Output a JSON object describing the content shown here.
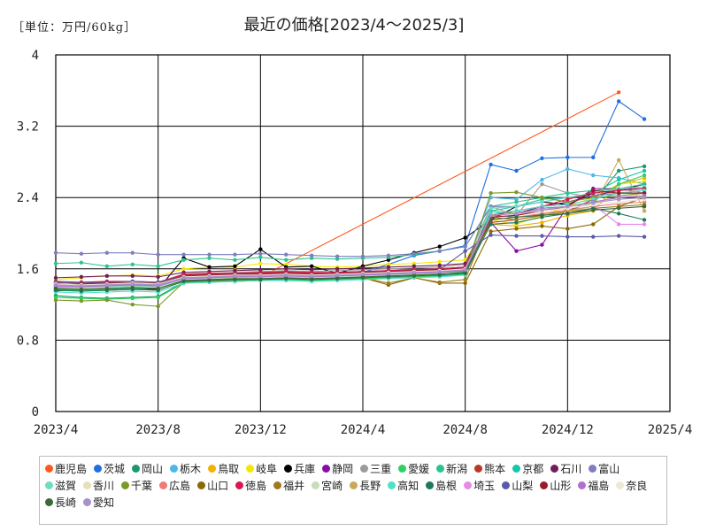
{
  "chart_data": {
    "type": "line",
    "title": "最近の価格[2023/4〜2025/3]",
    "unit_label": "［単位：万円/60kg］",
    "ylim": [
      0,
      4
    ],
    "y_ticks": [
      "0",
      "0.8",
      "1.6",
      "2.4",
      "3.2",
      "4"
    ],
    "x_ticks": [
      "2023/4",
      "2023/8",
      "2023/12",
      "2024/4",
      "2024/8",
      "2024/12",
      "2025/4"
    ],
    "x": [
      "2023/4",
      "2023/5",
      "2023/6",
      "2023/7",
      "2023/8",
      "2023/9",
      "2023/10",
      "2023/11",
      "2023/12",
      "2024/1",
      "2024/2",
      "2024/3",
      "2024/4",
      "2024/5",
      "2024/6",
      "2024/7",
      "2024/8",
      "2024/9",
      "2024/10",
      "2024/11",
      "2024/12",
      "2025/1",
      "2025/2",
      "2025/3"
    ],
    "legend_position": "bottom",
    "grid": true,
    "series": [
      {
        "name": "鹿児島",
        "color": "#ff5a1f",
        "values": [
          1.45,
          1.43,
          1.44,
          1.42,
          1.41,
          1.5,
          1.5,
          1.52,
          1.51,
          null,
          null,
          null,
          null,
          null,
          null,
          null,
          null,
          null,
          null,
          null,
          null,
          null,
          3.58,
          null
        ]
      },
      {
        "name": "茨城",
        "color": "#1f6fe0",
        "values": [
          1.38,
          1.4,
          1.42,
          1.41,
          1.4,
          1.46,
          1.47,
          1.48,
          1.49,
          1.5,
          1.51,
          1.54,
          1.56,
          1.65,
          1.75,
          1.8,
          1.86,
          2.77,
          2.7,
          2.84,
          2.85,
          2.85,
          3.48,
          3.28
        ]
      },
      {
        "name": "岡山",
        "color": "#1a9a6c",
        "values": [
          1.3,
          1.28,
          1.27,
          1.28,
          1.29,
          1.45,
          1.46,
          1.46,
          1.47,
          1.48,
          1.47,
          1.48,
          1.49,
          1.5,
          1.51,
          1.52,
          1.53,
          2.2,
          2.18,
          2.21,
          2.25,
          2.35,
          2.7,
          2.75
        ]
      },
      {
        "name": "栃木",
        "color": "#4ab8e8",
        "values": [
          1.4,
          1.39,
          1.41,
          1.4,
          1.39,
          1.48,
          1.49,
          1.5,
          1.52,
          1.53,
          1.52,
          1.54,
          1.55,
          1.56,
          1.57,
          1.58,
          1.6,
          2.4,
          2.38,
          2.6,
          2.72,
          2.65,
          2.62,
          2.55
        ]
      },
      {
        "name": "鳥取",
        "color": "#f2b000",
        "values": [
          1.42,
          1.4,
          1.4,
          1.41,
          1.42,
          1.52,
          1.53,
          1.55,
          1.56,
          1.55,
          1.54,
          1.55,
          1.56,
          1.57,
          1.58,
          1.59,
          1.6,
          2.1,
          2.08,
          2.12,
          2.2,
          2.25,
          2.55,
          2.62
        ]
      },
      {
        "name": "岐阜",
        "color": "#f5e800",
        "values": [
          1.48,
          1.5,
          1.52,
          1.53,
          1.52,
          1.6,
          1.62,
          1.62,
          1.66,
          1.65,
          1.63,
          1.62,
          1.63,
          1.65,
          1.66,
          1.68,
          1.7,
          2.15,
          2.1,
          2.2,
          2.3,
          2.4,
          2.55,
          2.58
        ]
      },
      {
        "name": "兵庫",
        "color": "#000000",
        "values": [
          1.35,
          1.38,
          1.37,
          1.38,
          1.37,
          1.72,
          1.62,
          1.63,
          1.82,
          1.62,
          1.63,
          1.55,
          1.63,
          1.7,
          1.78,
          1.85,
          1.95,
          2.15,
          2.3,
          2.35,
          2.32,
          2.45,
          2.48,
          2.55
        ]
      },
      {
        "name": "静岡",
        "color": "#8a0ca8",
        "values": [
          1.4,
          1.41,
          1.42,
          1.43,
          1.42,
          1.52,
          1.53,
          1.54,
          1.55,
          1.56,
          1.55,
          1.56,
          1.57,
          1.58,
          1.59,
          1.6,
          1.62,
          2.12,
          1.8,
          1.87,
          2.3,
          2.5,
          2.5,
          2.5
        ]
      },
      {
        "name": "三重",
        "color": "#9b9b9b",
        "values": [
          1.42,
          1.43,
          1.44,
          1.45,
          1.44,
          1.54,
          1.55,
          1.56,
          1.57,
          1.58,
          1.57,
          1.58,
          1.59,
          1.6,
          1.61,
          1.62,
          1.65,
          2.3,
          2.2,
          2.55,
          2.45,
          2.4,
          2.5,
          2.45
        ]
      },
      {
        "name": "愛媛",
        "color": "#2fd162",
        "values": [
          1.28,
          1.27,
          1.26,
          1.27,
          1.28,
          1.44,
          1.45,
          1.46,
          1.47,
          1.48,
          1.47,
          1.48,
          1.49,
          1.5,
          1.51,
          1.52,
          1.54,
          2.25,
          2.22,
          2.28,
          2.3,
          2.35,
          2.55,
          2.65
        ]
      },
      {
        "name": "新潟",
        "color": "#2ac58c",
        "values": [
          1.66,
          1.67,
          1.63,
          1.65,
          1.63,
          1.7,
          1.72,
          1.7,
          1.73,
          1.7,
          1.72,
          1.71,
          1.72,
          1.73,
          1.76,
          1.8,
          1.85,
          2.3,
          2.35,
          2.4,
          2.45,
          2.48,
          2.5,
          2.55
        ]
      },
      {
        "name": "熊本",
        "color": "#b83a24",
        "values": [
          1.46,
          1.45,
          1.45,
          1.44,
          1.44,
          1.53,
          1.54,
          1.55,
          1.55,
          1.56,
          1.55,
          1.56,
          1.57,
          1.58,
          1.58,
          1.6,
          1.62,
          2.12,
          2.15,
          2.2,
          2.25,
          2.38,
          2.45,
          2.48
        ]
      },
      {
        "name": "京都",
        "color": "#17c6a6",
        "values": [
          1.37,
          1.36,
          1.37,
          1.38,
          1.38,
          1.47,
          1.48,
          1.49,
          1.5,
          1.5,
          1.5,
          1.51,
          1.52,
          1.53,
          1.54,
          1.55,
          1.57,
          2.25,
          2.3,
          2.38,
          2.4,
          2.45,
          2.6,
          2.7
        ]
      },
      {
        "name": "石川",
        "color": "#6f1f5a",
        "values": [
          1.5,
          1.51,
          1.52,
          1.52,
          1.51,
          1.56,
          1.57,
          1.58,
          1.59,
          1.6,
          1.59,
          1.6,
          1.61,
          1.62,
          1.63,
          1.64,
          1.66,
          2.2,
          2.22,
          2.3,
          2.35,
          2.42,
          2.48,
          2.5
        ]
      },
      {
        "name": "富山",
        "color": "#7f7fbf",
        "values": [
          1.78,
          1.77,
          1.78,
          1.78,
          1.76,
          1.76,
          1.76,
          1.76,
          1.77,
          1.76,
          1.75,
          1.74,
          1.74,
          1.75,
          1.77,
          1.8,
          1.85,
          2.3,
          2.3,
          2.35,
          2.4,
          2.42,
          2.45,
          2.45
        ]
      },
      {
        "name": "滋賀",
        "color": "#6fdcc0",
        "values": [
          1.4,
          1.39,
          1.4,
          1.41,
          1.4,
          1.49,
          1.5,
          1.51,
          1.52,
          1.52,
          1.52,
          1.53,
          1.54,
          1.55,
          1.56,
          1.57,
          1.59,
          2.28,
          2.3,
          2.35,
          2.4,
          2.45,
          2.5,
          2.52
        ]
      },
      {
        "name": "香川",
        "color": "#e6e0b8",
        "values": [
          1.43,
          1.42,
          1.43,
          1.44,
          1.43,
          1.51,
          1.52,
          1.53,
          1.54,
          1.54,
          1.53,
          1.54,
          1.55,
          1.56,
          1.57,
          1.58,
          1.6,
          2.18,
          2.2,
          2.25,
          2.28,
          2.33,
          2.4,
          2.45
        ]
      },
      {
        "name": "千葉",
        "color": "#7a9a28",
        "values": [
          1.25,
          1.24,
          1.25,
          1.2,
          1.18,
          1.45,
          1.46,
          1.47,
          1.48,
          1.49,
          1.48,
          1.49,
          1.5,
          1.52,
          1.54,
          1.56,
          1.58,
          2.45,
          2.46,
          2.4,
          2.35,
          2.4,
          2.42,
          2.45
        ]
      },
      {
        "name": "広島",
        "color": "#f07a7a",
        "values": [
          1.4,
          1.41,
          1.42,
          1.42,
          1.41,
          1.5,
          1.51,
          1.52,
          1.52,
          1.53,
          1.52,
          1.53,
          1.54,
          1.55,
          1.56,
          1.57,
          1.59,
          2.15,
          2.18,
          2.22,
          2.26,
          2.3,
          2.33,
          2.35
        ]
      },
      {
        "name": "山口",
        "color": "#8a6a00",
        "values": [
          1.38,
          1.37,
          1.38,
          1.39,
          1.38,
          1.47,
          1.48,
          1.49,
          1.5,
          1.5,
          1.49,
          1.5,
          1.5,
          1.42,
          1.5,
          1.44,
          1.44,
          2.02,
          2.05,
          2.08,
          2.05,
          2.1,
          2.3,
          2.4
        ]
      },
      {
        "name": "徳島",
        "color": "#d6194f",
        "values": [
          1.44,
          1.45,
          1.46,
          1.46,
          1.45,
          1.54,
          1.55,
          1.55,
          1.56,
          1.57,
          1.56,
          1.56,
          1.57,
          1.58,
          1.59,
          1.6,
          1.62,
          2.2,
          2.25,
          2.3,
          2.38,
          2.45,
          2.48,
          2.5
        ]
      },
      {
        "name": "福井",
        "color": "#a07a1a",
        "values": [
          1.36,
          1.35,
          1.36,
          1.37,
          1.36,
          1.46,
          1.47,
          1.48,
          1.48,
          1.49,
          1.48,
          1.49,
          1.5,
          1.44,
          1.5,
          1.45,
          1.48,
          2.18,
          2.15,
          2.2,
          2.24,
          2.28,
          2.3,
          2.32
        ]
      },
      {
        "name": "宮崎",
        "color": "#c8dcb8",
        "values": [
          1.39,
          1.38,
          1.39,
          1.4,
          1.39,
          1.48,
          1.49,
          1.5,
          1.5,
          1.51,
          1.5,
          1.51,
          1.52,
          1.53,
          1.54,
          1.55,
          1.56,
          2.2,
          2.22,
          2.25,
          2.28,
          2.32,
          2.35,
          2.38
        ]
      },
      {
        "name": "長野",
        "color": "#c8a85a",
        "values": [
          1.4,
          1.4,
          1.41,
          1.42,
          1.41,
          1.5,
          1.51,
          1.52,
          1.52,
          1.53,
          1.52,
          1.53,
          1.54,
          1.55,
          1.56,
          1.57,
          1.58,
          2.15,
          2.18,
          2.2,
          2.25,
          2.3,
          2.82,
          2.25
        ]
      },
      {
        "name": "高知",
        "color": "#4fe0c8",
        "values": [
          1.34,
          1.33,
          1.34,
          1.35,
          1.34,
          1.44,
          1.45,
          1.46,
          1.47,
          1.47,
          1.46,
          1.47,
          1.48,
          1.49,
          1.5,
          1.51,
          1.53,
          2.22,
          2.25,
          2.3,
          2.32,
          2.38,
          2.45,
          2.48
        ]
      },
      {
        "name": "島根",
        "color": "#1f7a5a",
        "values": [
          1.36,
          1.35,
          1.36,
          1.37,
          1.36,
          1.46,
          1.47,
          1.48,
          1.48,
          1.49,
          1.48,
          1.49,
          1.5,
          1.51,
          1.52,
          1.53,
          1.55,
          2.1,
          2.12,
          2.18,
          2.22,
          2.28,
          2.22,
          2.15
        ]
      },
      {
        "name": "埼玉",
        "color": "#e68ae6",
        "values": [
          1.41,
          1.4,
          1.41,
          1.42,
          1.41,
          1.5,
          1.51,
          1.52,
          1.52,
          1.53,
          1.52,
          1.53,
          1.54,
          1.55,
          1.56,
          1.57,
          1.59,
          2.18,
          2.2,
          2.25,
          2.28,
          2.32,
          2.1,
          2.1
        ]
      },
      {
        "name": "山梨",
        "color": "#5a5aa8",
        "values": [
          1.45,
          1.44,
          1.45,
          1.46,
          1.45,
          1.52,
          1.53,
          1.54,
          1.54,
          1.55,
          1.54,
          1.55,
          1.56,
          1.57,
          1.58,
          1.59,
          1.8,
          1.98,
          1.97,
          1.97,
          1.96,
          1.96,
          1.97,
          1.96
        ]
      },
      {
        "name": "山形",
        "color": "#9a1a2a",
        "values": [
          1.42,
          1.43,
          1.44,
          1.44,
          1.43,
          1.52,
          1.53,
          1.54,
          1.54,
          1.55,
          1.54,
          1.55,
          1.56,
          1.57,
          1.58,
          1.59,
          1.61,
          2.18,
          2.2,
          2.25,
          2.3,
          2.48,
          2.45,
          2.45
        ]
      },
      {
        "name": "福島",
        "color": "#b070d0",
        "values": [
          1.4,
          1.4,
          1.41,
          1.42,
          1.41,
          1.49,
          1.5,
          1.51,
          1.51,
          1.52,
          1.51,
          1.52,
          1.53,
          1.54,
          1.55,
          1.56,
          1.58,
          2.2,
          2.22,
          2.28,
          2.3,
          2.35,
          2.4,
          2.42
        ]
      },
      {
        "name": "奈良",
        "color": "#ece8d8",
        "values": [
          1.43,
          1.42,
          1.43,
          1.44,
          1.43,
          1.51,
          1.52,
          1.53,
          1.53,
          1.54,
          1.53,
          1.54,
          1.55,
          1.56,
          1.57,
          1.58,
          1.6,
          2.2,
          2.22,
          2.25,
          2.28,
          2.32,
          2.35,
          2.38
        ]
      },
      {
        "name": "長崎",
        "color": "#3a6a3a",
        "values": [
          1.38,
          1.37,
          1.38,
          1.39,
          1.38,
          1.47,
          1.48,
          1.49,
          1.49,
          1.5,
          1.49,
          1.5,
          1.51,
          1.52,
          1.53,
          1.54,
          1.56,
          2.15,
          2.18,
          2.2,
          2.22,
          2.26,
          2.28,
          2.3
        ]
      },
      {
        "name": "愛知",
        "color": "#a890c8",
        "values": [
          1.42,
          1.41,
          1.42,
          1.43,
          1.42,
          1.5,
          1.51,
          1.52,
          1.52,
          1.53,
          1.52,
          1.53,
          1.54,
          1.55,
          1.56,
          1.57,
          1.59,
          2.2,
          2.22,
          2.26,
          2.3,
          2.34,
          2.38,
          2.4
        ]
      }
    ]
  }
}
